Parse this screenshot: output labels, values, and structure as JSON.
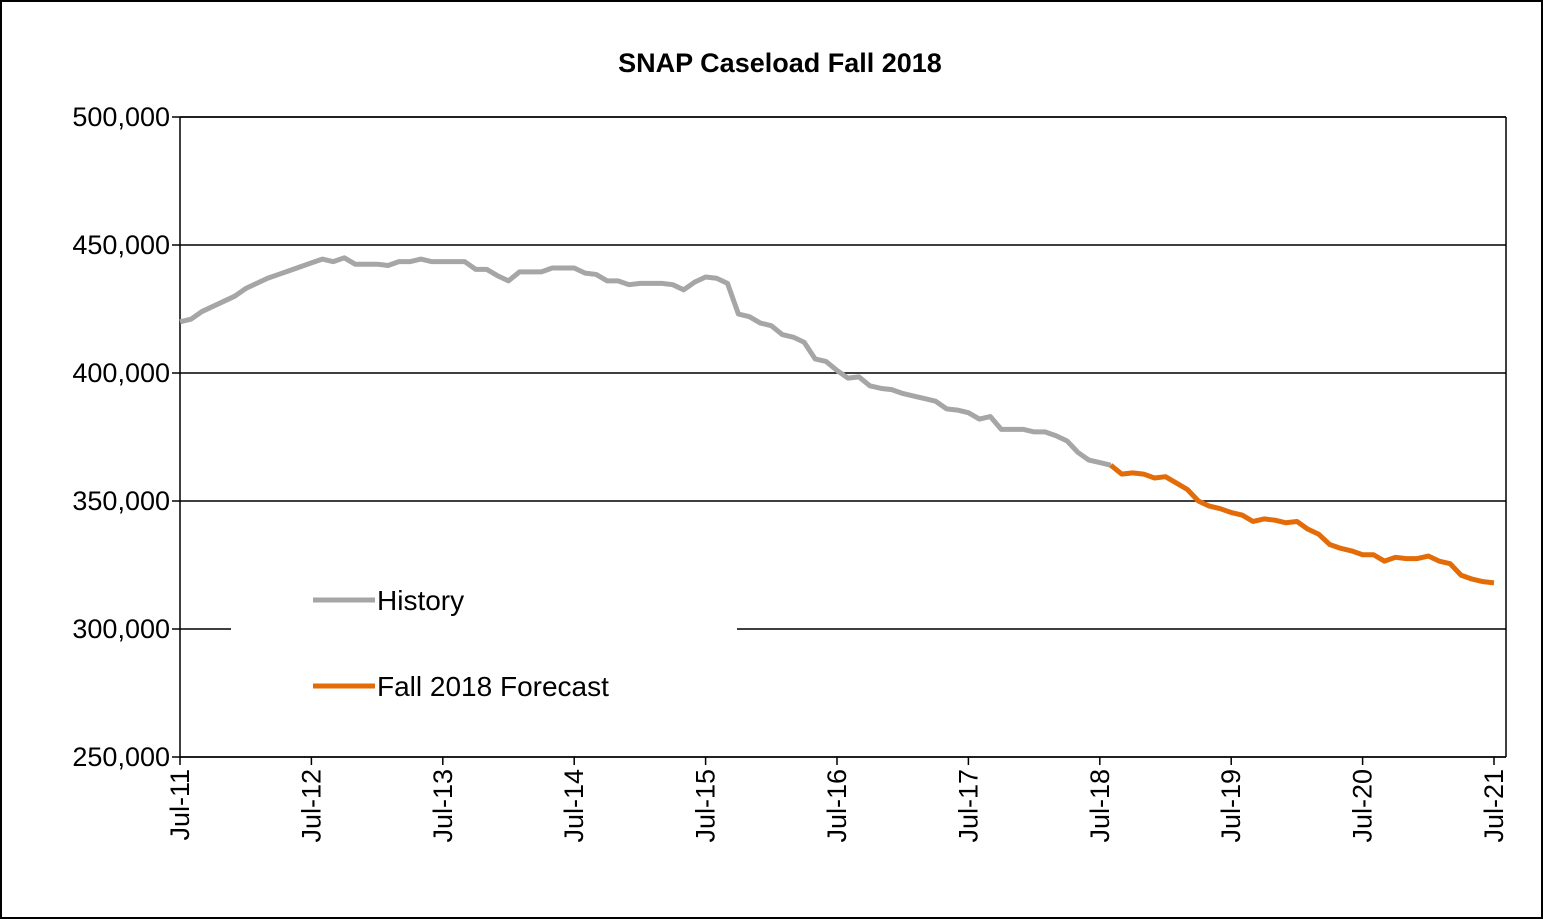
{
  "chart_data": {
    "type": "line",
    "title": "SNAP Caseload Fall 2018",
    "categories": [
      "Jul-11",
      null,
      null,
      null,
      null,
      null,
      null,
      null,
      null,
      null,
      null,
      null,
      "Jul-12",
      null,
      null,
      null,
      null,
      null,
      null,
      null,
      null,
      null,
      null,
      null,
      "Jul-13",
      null,
      null,
      null,
      null,
      null,
      null,
      null,
      null,
      null,
      null,
      null,
      "Jul-14",
      null,
      null,
      null,
      null,
      null,
      null,
      null,
      null,
      null,
      null,
      null,
      "Jul-15",
      null,
      null,
      null,
      null,
      null,
      null,
      null,
      null,
      null,
      null,
      null,
      "Jul-16",
      null,
      null,
      null,
      null,
      null,
      null,
      null,
      null,
      null,
      null,
      null,
      "Jul-17",
      null,
      null,
      null,
      null,
      null,
      null,
      null,
      null,
      null,
      null,
      null,
      "Jul-18",
      null,
      null,
      null,
      null,
      null,
      null,
      null,
      null,
      null,
      null,
      null,
      "Jul-19",
      null,
      null,
      null,
      null,
      null,
      null,
      null,
      null,
      null,
      null,
      null,
      "Jul-20",
      null,
      null,
      null,
      null,
      null,
      null,
      null,
      null,
      null,
      null,
      null,
      "Jul-21"
    ],
    "series": [
      {
        "name": "History",
        "color": "#a6a6a6",
        "values": [
          420000,
          421000,
          424000,
          426000,
          428000,
          430000,
          433000,
          435000,
          437000,
          438500,
          440000,
          441500,
          443000,
          444500,
          443500,
          445000,
          442500,
          442500,
          442500,
          442000,
          443500,
          443500,
          444500,
          443500,
          443500,
          443500,
          443500,
          440500,
          440500,
          438000,
          436000,
          439500,
          439500,
          439500,
          441000,
          441000,
          441000,
          439000,
          438500,
          436000,
          436000,
          434500,
          435000,
          435000,
          435000,
          434500,
          432500,
          435500,
          437500,
          437000,
          435000,
          423000,
          422000,
          419500,
          418500,
          415000,
          414000,
          412000,
          405500,
          404500,
          401000,
          398000,
          398500,
          395000,
          394000,
          393500,
          392000,
          391000,
          390000,
          389000,
          386000,
          385500,
          384500,
          382000,
          383000,
          378000,
          378000,
          378000,
          377000,
          377000,
          375500,
          373500,
          369000,
          366000,
          365000,
          364000,
          null,
          null,
          null,
          null,
          null,
          null,
          null,
          null,
          null,
          null,
          null,
          null,
          null,
          null,
          null,
          null,
          null,
          null,
          null,
          null,
          null,
          null,
          null,
          null,
          null,
          null,
          null,
          null,
          null,
          null,
          null,
          null,
          null,
          null,
          null
        ]
      },
      {
        "name": "Fall 2018 Forecast",
        "color": "#e36c09",
        "values": [
          null,
          null,
          null,
          null,
          null,
          null,
          null,
          null,
          null,
          null,
          null,
          null,
          null,
          null,
          null,
          null,
          null,
          null,
          null,
          null,
          null,
          null,
          null,
          null,
          null,
          null,
          null,
          null,
          null,
          null,
          null,
          null,
          null,
          null,
          null,
          null,
          null,
          null,
          null,
          null,
          null,
          null,
          null,
          null,
          null,
          null,
          null,
          null,
          null,
          null,
          null,
          null,
          null,
          null,
          null,
          null,
          null,
          null,
          null,
          null,
          null,
          null,
          null,
          null,
          null,
          null,
          null,
          null,
          null,
          null,
          null,
          null,
          null,
          null,
          null,
          null,
          null,
          null,
          null,
          null,
          null,
          null,
          null,
          null,
          null,
          364000,
          360500,
          361000,
          360500,
          359000,
          359500,
          357000,
          354500,
          350000,
          348000,
          347000,
          345500,
          344500,
          342000,
          343000,
          342500,
          341500,
          342000,
          339000,
          337000,
          333000,
          331500,
          330500,
          329000,
          329000,
          326500,
          328000,
          327500,
          327500,
          328500,
          326500,
          325500,
          321000,
          319500,
          318500,
          318000
        ]
      }
    ],
    "ylim": [
      250000,
      500000
    ],
    "yticks": [
      {
        "value": 250000,
        "label": "250,000"
      },
      {
        "value": 300000,
        "label": "300,000"
      },
      {
        "value": 350000,
        "label": "350,000"
      },
      {
        "value": 400000,
        "label": "400,000"
      },
      {
        "value": 450000,
        "label": "450,000"
      },
      {
        "value": 500000,
        "label": "500,000"
      }
    ],
    "grid": true
  }
}
